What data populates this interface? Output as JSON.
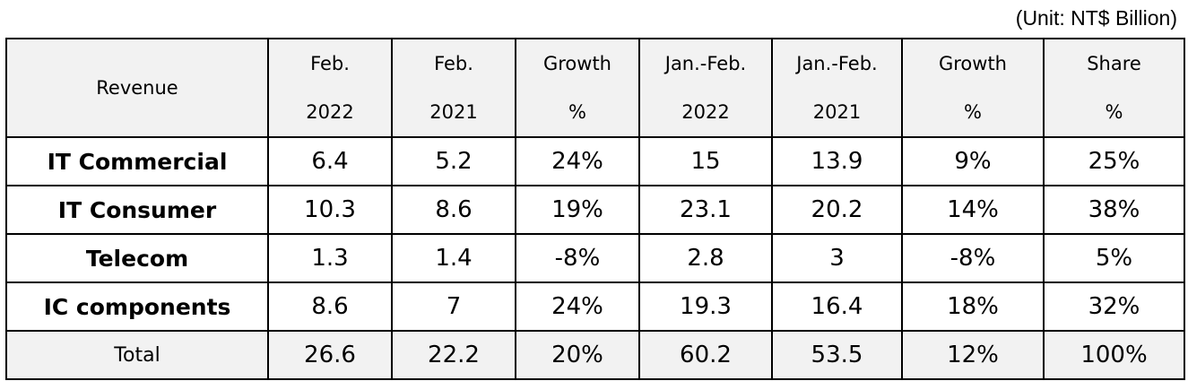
{
  "unit_note": "(Unit: NT$ Billion)",
  "header": {
    "label": "Revenue",
    "columns": [
      {
        "line1": "Feb.",
        "line2": "2022"
      },
      {
        "line1": "Feb.",
        "line2": "2021"
      },
      {
        "line1": "Growth",
        "line2": "%"
      },
      {
        "line1": "Jan.-Feb.",
        "line2": "2022"
      },
      {
        "line1": "Jan.-Feb.",
        "line2": "2021"
      },
      {
        "line1": "Growth",
        "line2": "%"
      },
      {
        "line1": "Share",
        "line2": "%"
      }
    ]
  },
  "rows": [
    {
      "label": "IT Commercial",
      "cells": [
        "6.4",
        "5.2",
        "24%",
        "15",
        "13.9",
        "9%",
        "25%"
      ]
    },
    {
      "label": "IT Consumer",
      "cells": [
        "10.3",
        "8.6",
        "19%",
        "23.1",
        "20.2",
        "14%",
        "38%"
      ]
    },
    {
      "label": "Telecom",
      "cells": [
        "1.3",
        "1.4",
        "-8%",
        "2.8",
        "3",
        "-8%",
        "5%"
      ]
    },
    {
      "label": "IC components",
      "cells": [
        "8.6",
        "7",
        "24%",
        "19.3",
        "16.4",
        "18%",
        "32%"
      ]
    }
  ],
  "total": {
    "label": "Total",
    "cells": [
      "26.6",
      "22.2",
      "20%",
      "60.2",
      "53.5",
      "12%",
      "100%"
    ]
  }
}
